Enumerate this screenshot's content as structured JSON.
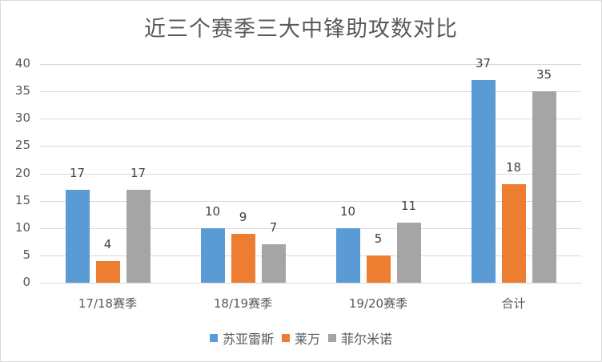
{
  "chart_data": {
    "type": "bar",
    "title": "近三个赛季三大中锋助攻数对比",
    "categories": [
      "17/18赛季",
      "18/19赛季",
      "19/20赛季",
      "合计"
    ],
    "series": [
      {
        "name": "苏亚雷斯",
        "color": "#5b9bd5",
        "values": [
          17,
          10,
          10,
          37
        ]
      },
      {
        "name": "莱万",
        "color": "#ed7d31",
        "values": [
          4,
          9,
          5,
          18
        ]
      },
      {
        "name": "菲尔米诺",
        "color": "#a5a5a5",
        "values": [
          17,
          7,
          11,
          35
        ]
      }
    ],
    "xlabel": "",
    "ylabel": "",
    "ylim": [
      0,
      40
    ],
    "yticks": [
      0,
      5,
      10,
      15,
      20,
      25,
      30,
      35,
      40
    ],
    "grid": true,
    "legend_position": "bottom",
    "data_labels": true
  }
}
